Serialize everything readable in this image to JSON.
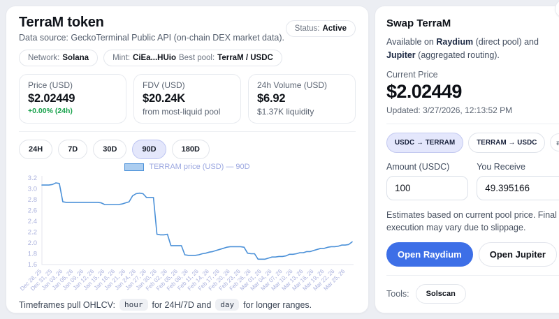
{
  "token_panel": {
    "title": "TerraM token",
    "subtitle": "Data source: GeckoTerminal Public API (on-chain DEX market data).",
    "status": {
      "label": "Status:",
      "value": "Active"
    },
    "chips": {
      "network_label": "Network:",
      "network_value": "Solana",
      "mint_label": "Mint:",
      "mint_value": "CiEa...HUio",
      "pool_label": "Best pool:",
      "pool_value": "TerraM / USDC"
    },
    "stats": {
      "cards": [
        {
          "label": "Price (USD)",
          "value": "$2.02449",
          "sub": "+0.00% (24h)"
        },
        {
          "label": "FDV (USD)",
          "value": "$20.24K",
          "sub": "from most-liquid pool"
        },
        {
          "label": "24h Volume (USD)",
          "value": "$6.92",
          "sub": "$1.37K liquidity"
        }
      ]
    },
    "timeframes": {
      "options": [
        "24H",
        "7D",
        "30D",
        "90D",
        "180D"
      ],
      "selected": "90D"
    },
    "footer": {
      "prefix": "Timeframes pull OHLCV:",
      "code1": "hour",
      "mid": "for 24H/7D and",
      "code2": "day",
      "suffix": "for longer ranges."
    }
  },
  "chart_data": {
    "type": "line",
    "legend": "TERRAM price (USD) — 90D",
    "ylabel": "",
    "xlabel": "",
    "ylim": [
      1.6,
      3.2
    ],
    "yticks": [
      "3.2",
      "3.0",
      "2.8",
      "2.6",
      "2.4",
      "2.2",
      "2.0",
      "1.8",
      "1.6"
    ],
    "grid": false,
    "legend_position": "top-center",
    "line_color": "#4a90d8",
    "legend_swatch_fill": "#abcdf0",
    "axis_label_color": "#a9b0dd",
    "x_tick_interval_days": 3,
    "x_labels": [
      "Dec 28, 25",
      "Dec 31, 25",
      "Jan 03, 26",
      "Jan 06, 26",
      "Jan 09, 26",
      "Jan 12, 26",
      "Jan 15, 26",
      "Jan 18, 26",
      "Jan 21, 26",
      "Jan 24, 26",
      "Jan 27, 26",
      "Jan 30, 26",
      "Feb 02, 26",
      "Feb 05, 26",
      "Feb 08, 26",
      "Feb 11, 26",
      "Feb 14, 26",
      "Feb 17, 26",
      "Feb 20, 26",
      "Feb 23, 26",
      "Feb 26, 26",
      "Mar 01, 26",
      "Mar 04, 26",
      "Mar 07, 26",
      "Mar 10, 26",
      "Mar 13, 26",
      "Mar 16, 26",
      "Mar 19, 26",
      "Mar 22, 26",
      "Mar 25, 26"
    ],
    "values": [
      3.07,
      3.07,
      3.07,
      3.08,
      3.11,
      3.1,
      2.76,
      2.75,
      2.75,
      2.75,
      2.75,
      2.75,
      2.75,
      2.75,
      2.75,
      2.75,
      2.75,
      2.74,
      2.71,
      2.71,
      2.71,
      2.71,
      2.71,
      2.72,
      2.74,
      2.76,
      2.87,
      2.91,
      2.92,
      2.91,
      2.84,
      2.84,
      2.84,
      2.16,
      2.15,
      2.15,
      2.16,
      1.95,
      1.95,
      1.95,
      1.95,
      1.78,
      1.77,
      1.77,
      1.77,
      1.78,
      1.8,
      1.81,
      1.83,
      1.84,
      1.86,
      1.88,
      1.9,
      1.92,
      1.93,
      1.93,
      1.93,
      1.93,
      1.92,
      1.81,
      1.8,
      1.8,
      1.7,
      1.7,
      1.7,
      1.72,
      1.74,
      1.74,
      1.75,
      1.75,
      1.76,
      1.79,
      1.79,
      1.8,
      1.82,
      1.82,
      1.84,
      1.84,
      1.86,
      1.88,
      1.9,
      1.9,
      1.92,
      1.93,
      1.93,
      1.94,
      1.96,
      1.96,
      1.97,
      2.02
    ]
  },
  "swap_panel": {
    "title": "Swap TerraM",
    "availability": {
      "prefix": "Available on ",
      "raydium": "Raydium",
      "mid": " (direct pool) and ",
      "jupiter": "Jupiter",
      "suffix": " (aggregated routing)."
    },
    "current_price_label": "Current Price",
    "current_price": "$2.02449",
    "updated": "Updated: 3/27/2026, 12:13:52 PM",
    "direction_toggle": {
      "options": [
        "USDC → TERRAM",
        "TERRAM → USDC"
      ],
      "selected": "USDC → TERRAM"
    },
    "amount_label": "Amount (USDC)",
    "receive_label": "You Receive",
    "amount_value": "100",
    "receive_value": "49.395166",
    "note": "Estimates based on current pool price. Final execution may vary due to slippage.",
    "buttons": {
      "raydium": "Open Raydium",
      "jupiter": "Open Jupiter"
    },
    "tools_label": "Tools:",
    "tools": [
      "Solscan"
    ],
    "accent_blue": "#3d6fe7"
  },
  "icons": {
    "edit": "✎",
    "swap": "⇄"
  }
}
